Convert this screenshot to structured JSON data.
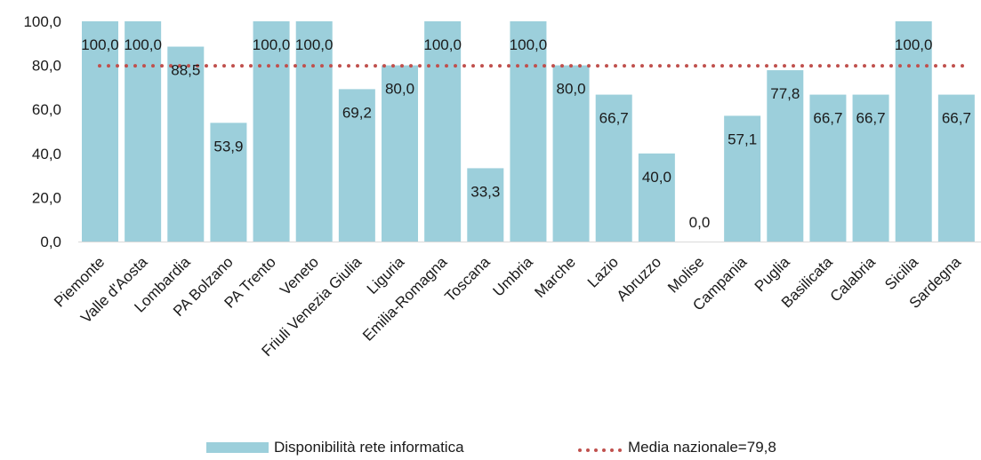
{
  "chart_data": {
    "type": "bar",
    "categories": [
      "Piemonte",
      "Valle d'Aosta",
      "Lombardia",
      "PA Bolzano",
      "PA Trento",
      "Veneto",
      "Friuli Venezia Giulia",
      "Liguria",
      "Emilia-Romagna",
      "Toscana",
      "Umbria",
      "Marche",
      "Lazio",
      "Abruzzo",
      "Molise",
      "Campania",
      "Puglia",
      "Basilicata",
      "Calabria",
      "Sicilia",
      "Sardegna"
    ],
    "series": [
      {
        "name": "Disponibilità rete informatica",
        "values": [
          100.0,
          100.0,
          88.5,
          53.9,
          100.0,
          100.0,
          69.2,
          80.0,
          100.0,
          33.3,
          100.0,
          80.0,
          66.7,
          40.0,
          0.0,
          57.1,
          77.8,
          66.7,
          66.7,
          100.0,
          66.7
        ],
        "data_labels": [
          "100,0",
          "100,0",
          "88,5",
          "53,9",
          "100,0",
          "100,0",
          "69,2",
          "80,0",
          "100,0",
          "33,3",
          "100,0",
          "80,0",
          "66,7",
          "40,0",
          "0,0",
          "57,1",
          "77,8",
          "66,7",
          "66,7",
          "100,0",
          "66,7"
        ],
        "color": "#9ccfdb"
      }
    ],
    "reference_line": {
      "name": "Media nazionale=79,8",
      "value": 79.8,
      "color": "#c0504d",
      "style": "dotted"
    },
    "ylim": [
      0,
      100
    ],
    "yticks": [
      0,
      20,
      40,
      60,
      80,
      100
    ],
    "ytick_labels": [
      "0,0",
      "20,0",
      "40,0",
      "60,0",
      "80,0",
      "100,0"
    ],
    "grid": false,
    "legend_position": "bottom",
    "title": "",
    "xlabel": "",
    "ylabel": ""
  }
}
